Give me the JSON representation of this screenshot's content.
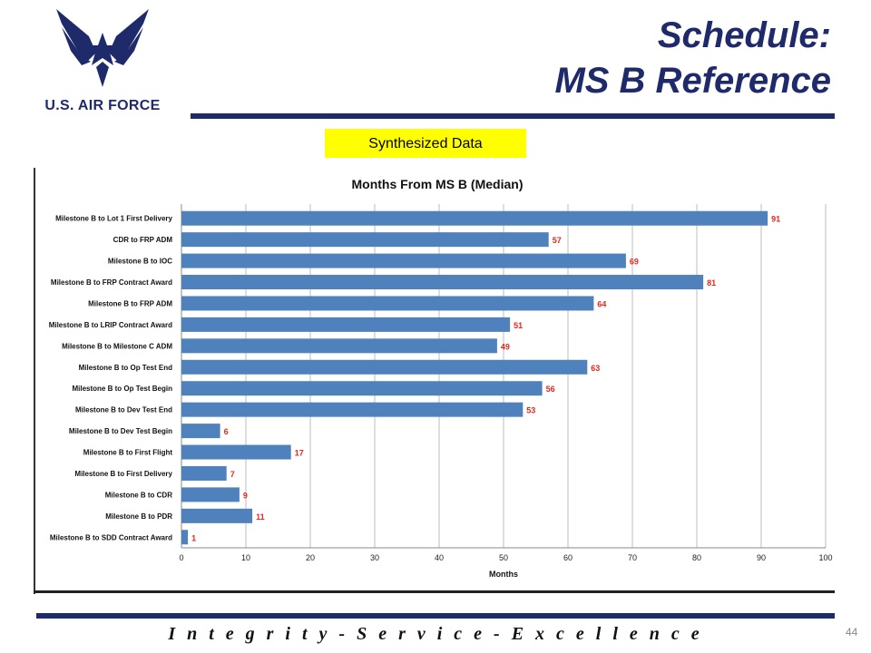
{
  "header": {
    "logo_text": "U.S. AIR FORCE",
    "title_line1": "Schedule:",
    "title_line2": "MS B Reference",
    "badge": "Synthesized Data"
  },
  "footer": {
    "motto": "I n t e g r i t y  -  S e r v i c e  -  E x c e l l e n c e",
    "page_number": "44"
  },
  "colors": {
    "navy": "#1f2a6b",
    "bar": "#4f81bd",
    "label_red": "#e8261c",
    "badge_yellow": "#ffff00"
  },
  "chart_data": {
    "type": "bar",
    "orientation": "horizontal",
    "title": "Months From MS B (Median)",
    "xlabel": "Months",
    "ylabel": "",
    "xlim": [
      0,
      100
    ],
    "xticks": [
      0,
      10,
      20,
      30,
      40,
      50,
      60,
      70,
      80,
      90,
      100
    ],
    "grid": true,
    "categories": [
      "Milestone B to Lot 1 First Delivery",
      "CDR to FRP ADM",
      "Milestone B to IOC",
      "Milestone B to FRP Contract Award",
      "Milestone B to FRP ADM",
      "Milestone B to LRIP Contract  Award",
      "Milestone B to Milestone C ADM",
      "Milestone B to Op Test End",
      "Milestone B to Op Test Begin",
      "Milestone B to Dev Test End",
      "Milestone B to Dev Test Begin",
      "Milestone B to First Flight",
      "Milestone B to First Delivery",
      "Milestone B to CDR",
      "Milestone B to PDR",
      "Milestone B to SDD Contract Award"
    ],
    "values": [
      91,
      57,
      69,
      81,
      64,
      51,
      49,
      63,
      56,
      53,
      6,
      17,
      7,
      9,
      11,
      1
    ]
  }
}
